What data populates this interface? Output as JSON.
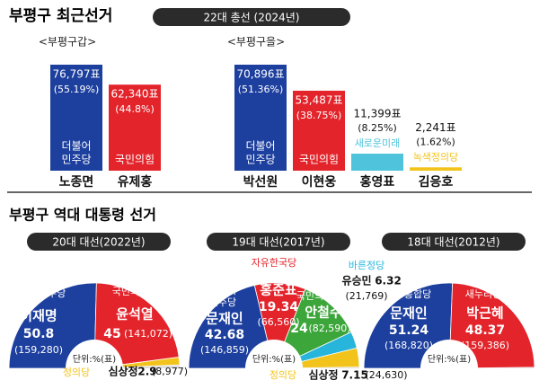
{
  "title": "부평구 최근선거",
  "section_title": "부평구 역대 대통령 선거",
  "chart_data": [
    {
      "type": "bar",
      "title": "22대 총선 (2024년)",
      "subtitle": "<부평구갑>",
      "categories": [
        "노종면",
        "유제홍"
      ],
      "values": [
        76797,
        62340
      ],
      "value_labels": [
        "76,797표",
        "62,340표"
      ],
      "share_labels": [
        "(55.19%)",
        "(44.8%)"
      ],
      "parties": [
        [
          "더불어",
          "민주당"
        ],
        [
          "국민의힘"
        ]
      ],
      "colors": [
        "#1d3f9e",
        "#e3242b"
      ]
    },
    {
      "type": "bar",
      "subtitle": "<부평구을>",
      "categories": [
        "박선원",
        "이현웅",
        "홍영표",
        "김응호"
      ],
      "values": [
        70896,
        53487,
        11399,
        2241
      ],
      "value_labels": [
        "70,896표",
        "53,487표",
        "11,399표",
        "2,241표"
      ],
      "share_labels": [
        "(51.36%)",
        "(38.75%)",
        "(8.25%)",
        "(1.62%)"
      ],
      "parties": [
        [
          "더불어",
          "민주당"
        ],
        [
          "국민의힘"
        ],
        [
          "새로운미래"
        ],
        [
          "녹색정의당"
        ]
      ],
      "colors": [
        "#1d3f9e",
        "#e3242b",
        "#4fc3dc",
        "#f2c31b"
      ]
    },
    {
      "type": "pie",
      "title": "20대 대선(2022년)",
      "unit": "단위:%(표)",
      "categories": [
        "이재명",
        "윤석열",
        "심상정"
      ],
      "values": [
        50.8,
        45,
        2.9
      ],
      "vote_labels": [
        "(159,280)",
        "(141,072)",
        "(8,977)"
      ],
      "parties": [
        [
          "더불어민주당"
        ],
        [
          "국민의힘"
        ],
        [
          "정의당"
        ]
      ],
      "colors": [
        "#1d3f9e",
        "#e3242b",
        "#f2c31b"
      ]
    },
    {
      "type": "pie",
      "title": "19대 대선(2017년)",
      "unit": "단위:%(표)",
      "categories": [
        "문재인",
        "홍준표",
        "안철수",
        "유승민",
        "심상정"
      ],
      "values": [
        42.68,
        19.34,
        24,
        6.32,
        7.15
      ],
      "vote_labels": [
        "(146,859)",
        "(66,560)",
        "(82,590)",
        "(21,769)",
        "(24,630)"
      ],
      "parties": [
        [
          "더불어",
          "민주당"
        ],
        [
          "자유한국당"
        ],
        [
          "국민의당"
        ],
        [
          "바른정당"
        ],
        [
          "정의당"
        ]
      ],
      "colors": [
        "#1d3f9e",
        "#e3242b",
        "#3ca63a",
        "#27b5dc",
        "#f2c31b"
      ]
    },
    {
      "type": "pie",
      "title": "18대 대선(2012년)",
      "unit": "단위:%(표)",
      "categories": [
        "문재인",
        "박근혜"
      ],
      "values": [
        51.24,
        48.37
      ],
      "vote_labels": [
        "(168,820)",
        "(159,386)"
      ],
      "parties": [
        [
          "민주통합당"
        ],
        [
          "새누리당"
        ]
      ],
      "colors": [
        "#1d3f9e",
        "#e3242b"
      ]
    }
  ]
}
